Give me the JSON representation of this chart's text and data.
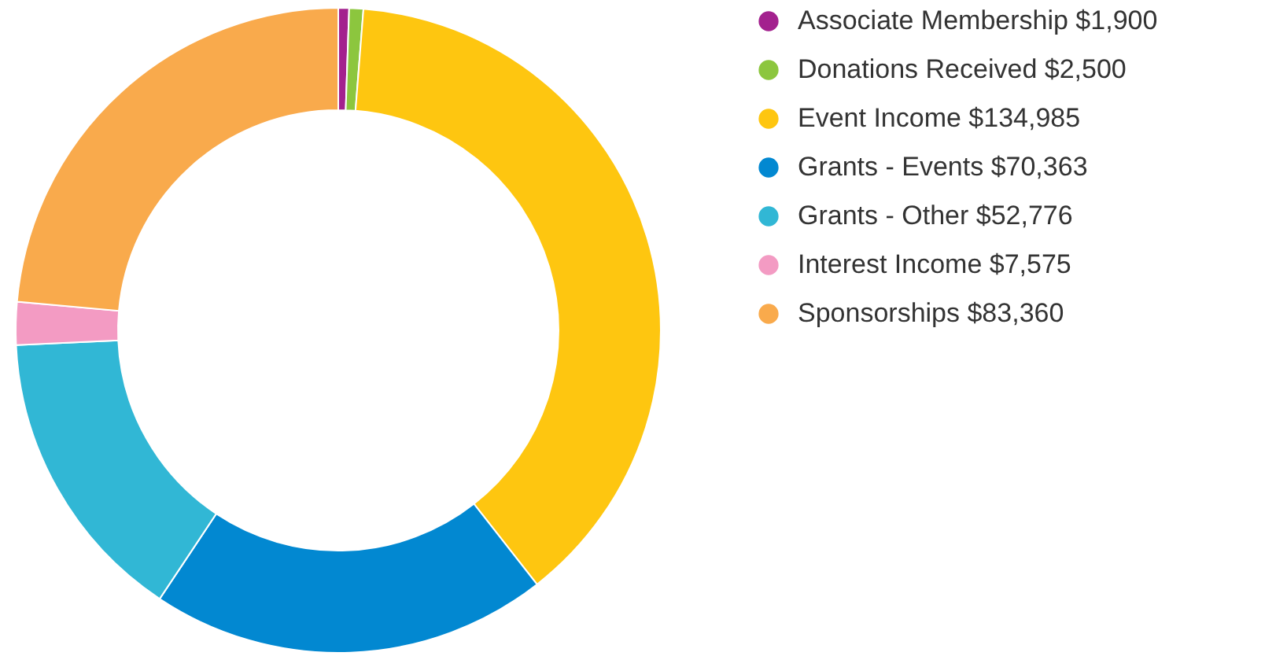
{
  "chart_data": {
    "type": "donut",
    "categories": [
      "Associate Membership",
      "Donations Received",
      "Event Income",
      "Grants - Events",
      "Grants - Other",
      "Interest Income",
      "Sponsorships"
    ],
    "values": [
      1900,
      2500,
      134985,
      70363,
      52776,
      7575,
      83360
    ],
    "value_labels": [
      "$1,900",
      "$2,500",
      "$134,985",
      "$70,363",
      "$52,776",
      "$7,575",
      "$83,360"
    ],
    "colors": [
      "#a3218e",
      "#8cc63e",
      "#fec610",
      "#0288d1",
      "#31b7d5",
      "#f39bc3",
      "#f9aa4c"
    ],
    "legend": "right"
  }
}
